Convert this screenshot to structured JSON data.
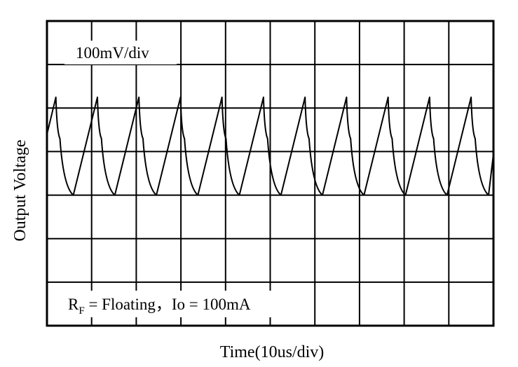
{
  "chart_data": {
    "type": "line",
    "title": "",
    "xlabel": "Time(10us/div)",
    "ylabel": "Output Voltage",
    "annotations": {
      "scale": "100mV/div",
      "condition_main": "R",
      "condition_sub": "F",
      "condition_rest": " = Floating，Io = 100mA"
    },
    "grid": true,
    "divisions": {
      "x": 10,
      "y": 7
    },
    "xlim": [
      0,
      10
    ],
    "ylim": [
      0,
      7
    ],
    "series": [
      {
        "waveform": "sawtooth",
        "period_div": 0.93,
        "peak_div": 5.25,
        "trough_div": 3.0,
        "x": [
          0.0,
          0.2,
          0.29,
          0.59,
          1.13,
          1.22,
          1.52,
          2.06,
          2.15,
          2.45,
          2.99,
          3.08,
          3.38,
          3.92,
          4.01,
          4.31,
          4.85,
          4.94,
          5.24,
          5.78,
          5.87,
          6.17,
          6.71,
          6.8,
          7.1,
          7.64,
          7.73,
          8.03,
          8.57,
          8.66,
          8.96,
          9.5,
          9.59,
          9.89,
          10.0
        ],
        "y": [
          4.4,
          5.25,
          4.3,
          3.0,
          5.25,
          4.3,
          3.0,
          5.25,
          4.3,
          3.0,
          5.25,
          4.3,
          3.0,
          5.25,
          4.3,
          3.0,
          5.25,
          4.3,
          3.0,
          5.25,
          4.3,
          3.0,
          5.25,
          4.3,
          3.0,
          5.25,
          4.3,
          3.0,
          5.25,
          4.3,
          3.0,
          5.25,
          4.3,
          3.0,
          3.95
        ]
      }
    ]
  }
}
